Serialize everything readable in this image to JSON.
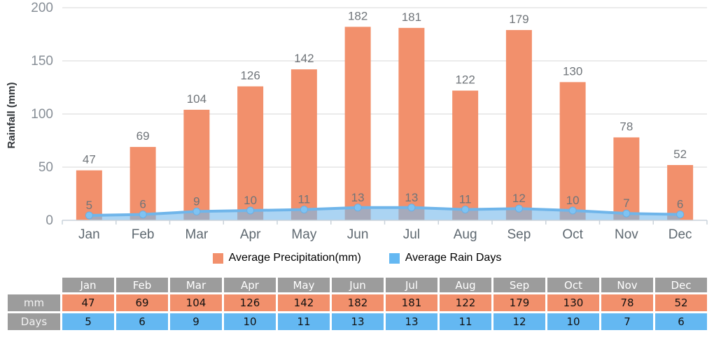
{
  "colors": {
    "bar": "#F2906C",
    "bar_value_label": "#6F7479",
    "line": "#6FB5EA",
    "marker_fill": "#7FC2F2",
    "marker_stroke": "#69AFE4",
    "area_fill": "rgba(120,185,236,0.62)",
    "grid": "#D7D7D7",
    "axis": "#C9D2DA",
    "y_tick_label": "#878E96",
    "x_tick_label": "#5E6870",
    "axis_title": "#2F3337",
    "legend_text": "#000000",
    "table_header_bg": "#9C9C9C",
    "table_orange": "#F2906C",
    "table_blue": "#64B8F2"
  },
  "chart_data": {
    "type": "bar",
    "categories": [
      "Jan",
      "Feb",
      "Mar",
      "Apr",
      "May",
      "Jun",
      "Jul",
      "Aug",
      "Sep",
      "Oct",
      "Nov",
      "Dec"
    ],
    "series": [
      {
        "name": "Average Precipitation(mm)",
        "type": "bar",
        "values": [
          47,
          69,
          104,
          126,
          142,
          182,
          181,
          122,
          179,
          130,
          78,
          52
        ]
      },
      {
        "name": "Average Rain Days",
        "type": "area",
        "values": [
          5,
          6,
          9,
          10,
          11,
          13,
          13,
          11,
          12,
          10,
          7,
          6
        ]
      }
    ],
    "title": "",
    "xlabel": "",
    "ylabel": "Rainfall (mm)",
    "yticks": [
      0,
      50,
      100,
      150,
      200
    ],
    "ylim": [
      0,
      200
    ],
    "grid": true,
    "value_labels_shown": true,
    "legend_position": "bottom"
  },
  "legend": {
    "items": [
      {
        "label": "Average Precipitation(mm)",
        "swatch": "orange-square"
      },
      {
        "label": "Average Rain Days",
        "swatch": "blue-square"
      }
    ]
  },
  "table": {
    "corner": "",
    "columns": [
      "Jan",
      "Feb",
      "Mar",
      "Apr",
      "May",
      "Jun",
      "Jul",
      "Aug",
      "Sep",
      "Oct",
      "Nov",
      "Dec"
    ],
    "rows": [
      {
        "label": "mm",
        "values": [
          47,
          69,
          104,
          126,
          142,
          182,
          181,
          122,
          179,
          130,
          78,
          52
        ]
      },
      {
        "label": "Days",
        "values": [
          5,
          6,
          9,
          10,
          11,
          13,
          13,
          11,
          12,
          10,
          7,
          6
        ]
      }
    ]
  }
}
